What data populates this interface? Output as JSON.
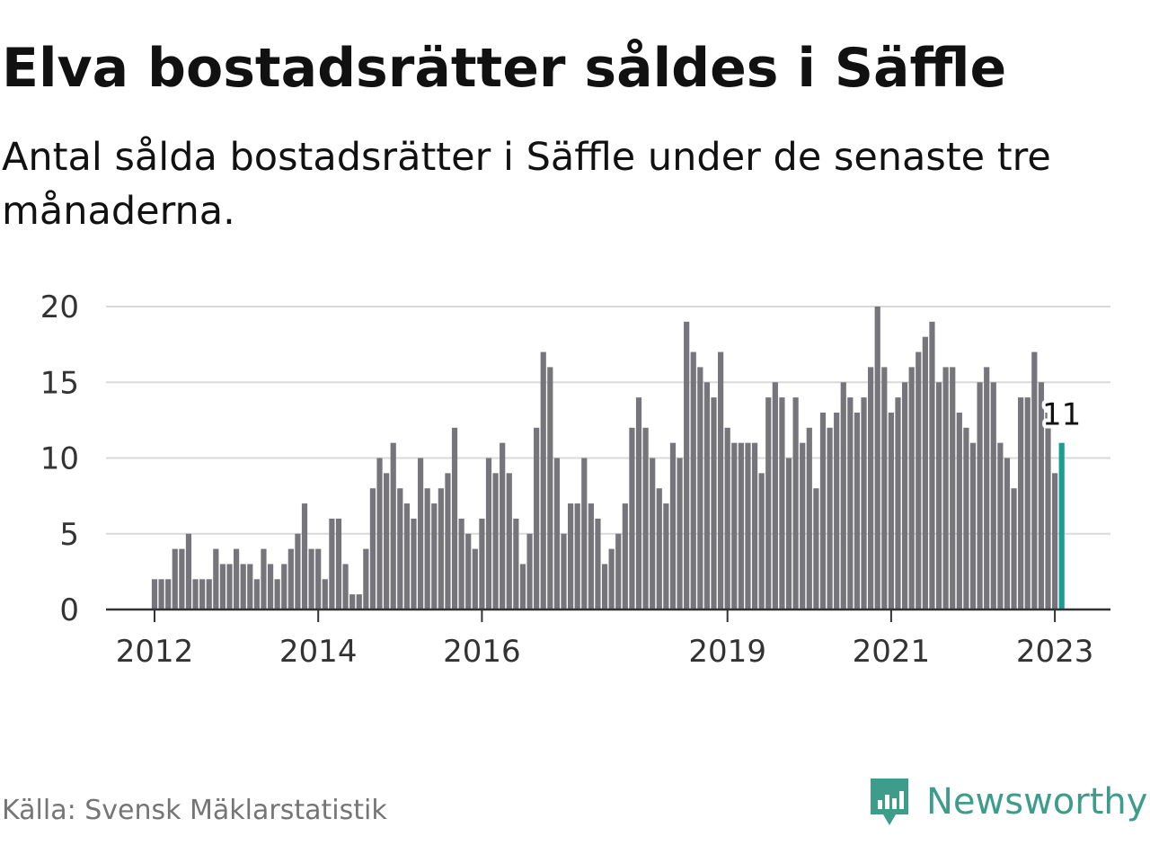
{
  "title": "Elva bostadsrätter såldes i Säffle",
  "subtitle": "Antal sålda bostadsrätter i Säffle under de senaste tre månaderna.",
  "source": "Källa: Svensk Mäklarstatistik",
  "brand": {
    "name": "Newsworthy",
    "icon": "newsworthy-logo-icon",
    "color": "#3d9c8a"
  },
  "colors": {
    "bar": "#76757b",
    "highlight": "#1a9e93",
    "grid": "#d9d9d9",
    "axis": "#333333"
  },
  "chart_data": {
    "type": "bar",
    "xlabel": "",
    "ylabel": "",
    "ylim": [
      0,
      20
    ],
    "yticks": [
      "0",
      "5",
      "10",
      "15",
      "20"
    ],
    "grid": true,
    "x_start": "2012-01",
    "xticks": [
      {
        "label": "2012",
        "month": "2012-01"
      },
      {
        "label": "2014",
        "month": "2014-01"
      },
      {
        "label": "2016",
        "month": "2016-01"
      },
      {
        "label": "2019",
        "month": "2019-01"
      },
      {
        "label": "2021",
        "month": "2021-01"
      },
      {
        "label": "2023",
        "month": "2023-01"
      }
    ],
    "values": [
      2,
      2,
      2,
      4,
      4,
      5,
      2,
      2,
      2,
      4,
      3,
      3,
      4,
      3,
      3,
      2,
      4,
      3,
      2,
      3,
      4,
      5,
      7,
      4,
      4,
      2,
      6,
      6,
      3,
      1,
      1,
      4,
      8,
      10,
      9,
      11,
      8,
      7,
      6,
      10,
      8,
      7,
      8,
      9,
      12,
      6,
      5,
      4,
      6,
      10,
      9,
      11,
      9,
      6,
      3,
      5,
      12,
      17,
      16,
      10,
      5,
      7,
      7,
      10,
      7,
      6,
      3,
      4,
      5,
      7,
      12,
      14,
      12,
      10,
      8,
      7,
      11,
      10,
      19,
      17,
      16,
      15,
      14,
      17,
      12,
      11,
      11,
      11,
      11,
      9,
      14,
      15,
      14,
      10,
      14,
      11,
      12,
      8,
      13,
      12,
      13,
      15,
      14,
      13,
      14,
      16,
      20,
      16,
      13,
      14,
      15,
      16,
      17,
      18,
      19,
      15,
      16,
      16,
      13,
      12,
      11,
      15,
      16,
      15,
      11,
      10,
      8,
      14,
      14,
      17,
      15,
      13,
      9,
      11
    ],
    "highlight": {
      "index": 133,
      "label": "11"
    }
  }
}
